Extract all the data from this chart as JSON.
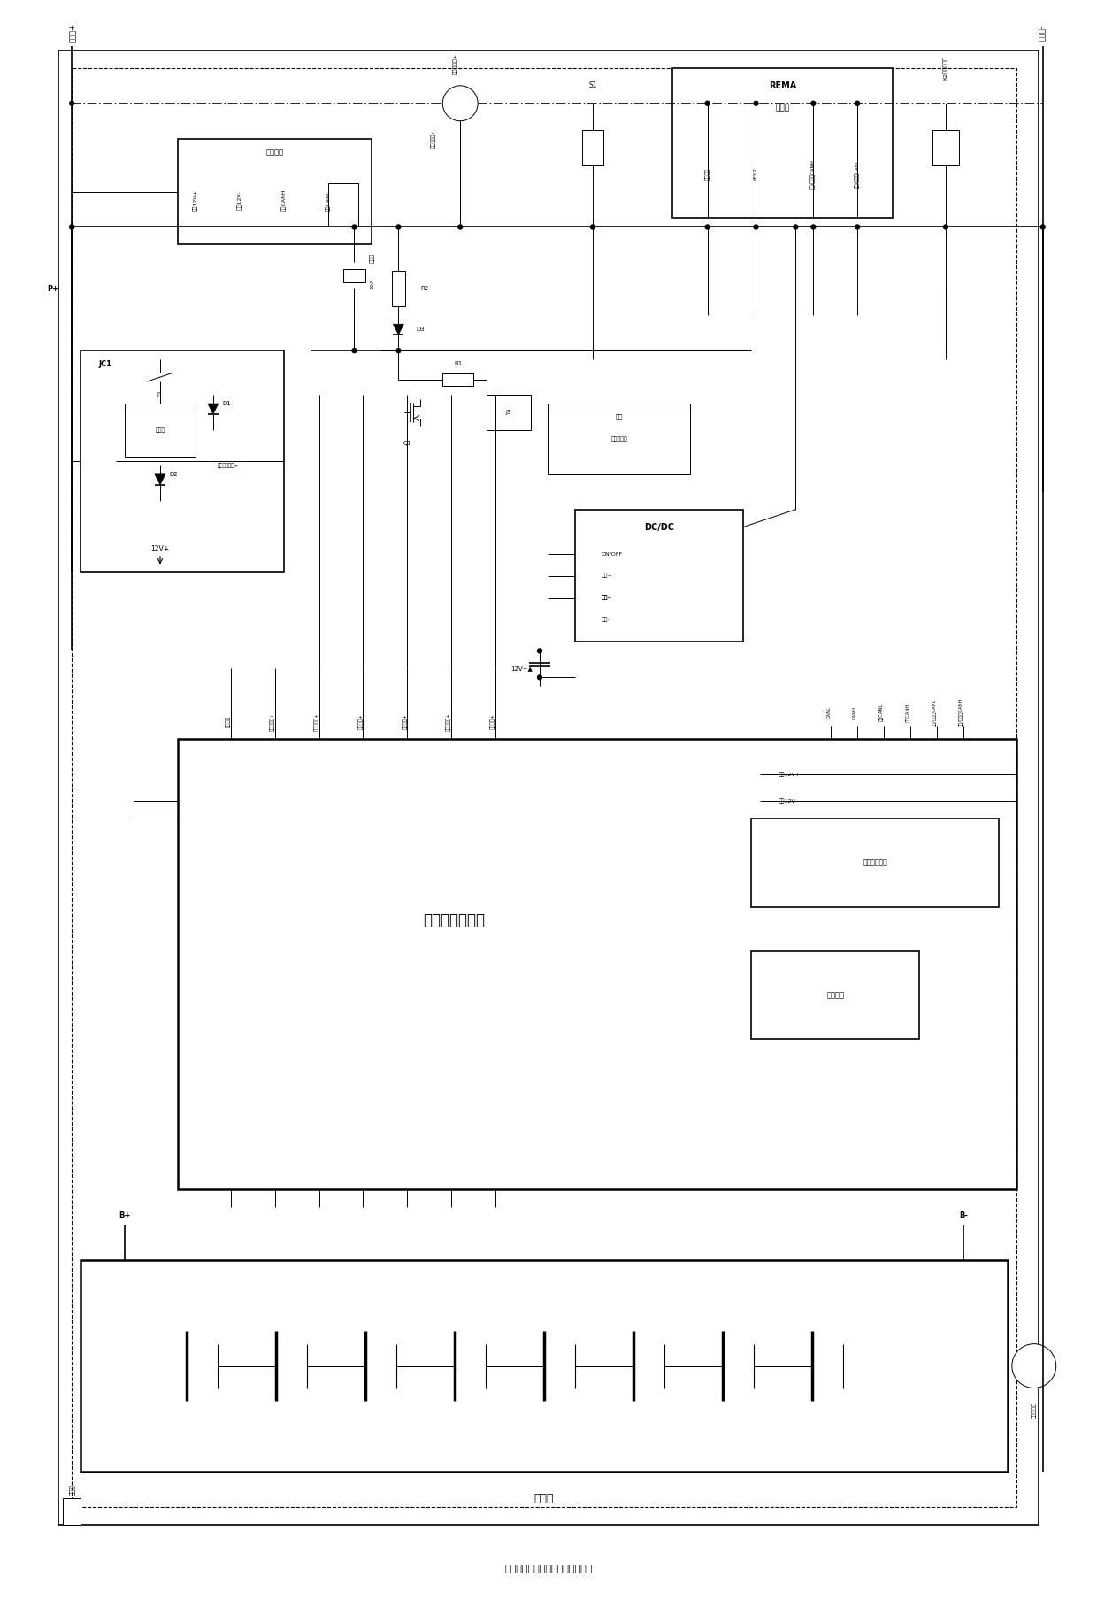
{
  "title": "电池组控制电路及电池组控制系统",
  "bg_color": "#ffffff",
  "figsize": [
    12.4,
    18.25
  ],
  "dpi": 100,
  "coords": {
    "outer_border": [
      15,
      10,
      1210,
      1790
    ],
    "inner_border_dash": [
      30,
      25,
      1195,
      1775
    ]
  }
}
